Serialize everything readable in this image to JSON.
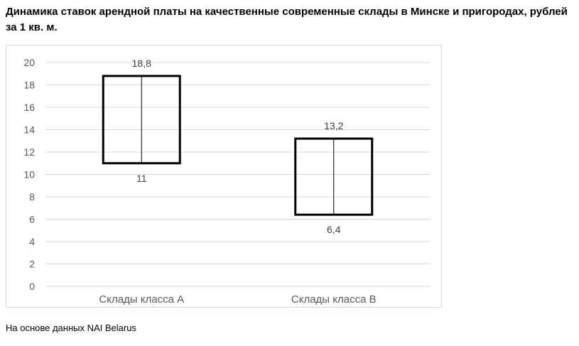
{
  "title": "Динамика ставок арендной платы на качественные современные склады в Минске и пригородах, рублей за 1 кв. м.",
  "source_note": "На основе данных NAI Belarus",
  "chart_data": {
    "type": "bar",
    "subtype": "floating-range",
    "categories": [
      "Склады класса А",
      "Склады класса В"
    ],
    "ranges": [
      {
        "category": "Склады класса А",
        "low": 11,
        "high": 18.8,
        "low_label": "11",
        "high_label": "18,8"
      },
      {
        "category": "Склады класса В",
        "low": 6.4,
        "high": 13.2,
        "low_label": "6,4",
        "high_label": "13,2"
      }
    ],
    "ylim": [
      0,
      20
    ],
    "yticks": [
      "0",
      "2",
      "4",
      "6",
      "8",
      "10",
      "12",
      "14",
      "16",
      "18",
      "20"
    ],
    "grid": true,
    "legend": "none",
    "colors": {
      "box_stroke": "#000000",
      "grid": "#d9d9d9",
      "axis_text": "#595959",
      "label_text": "#404040"
    }
  }
}
